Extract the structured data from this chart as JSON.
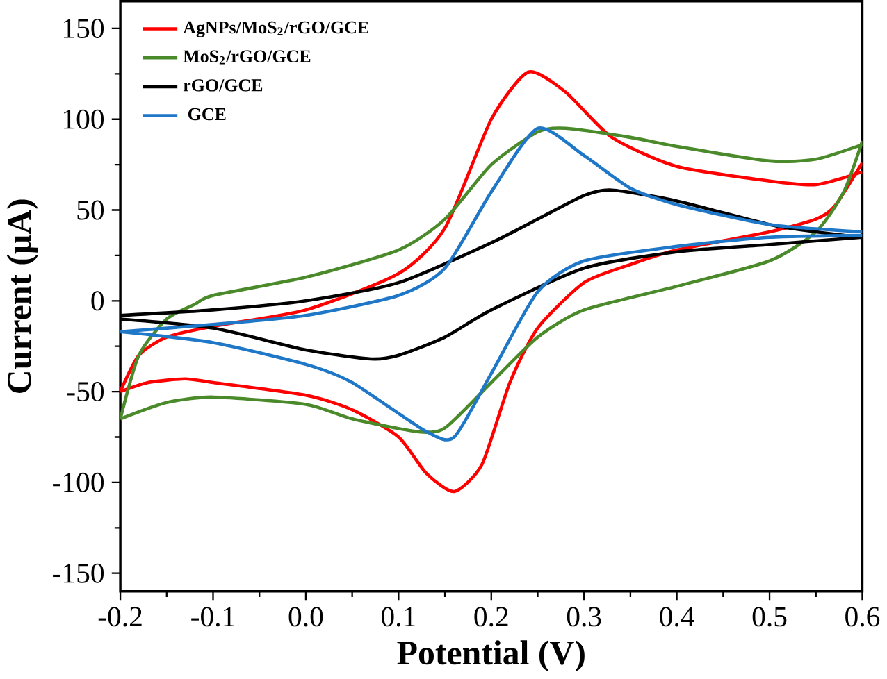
{
  "chart_data": {
    "type": "line",
    "xlabel": "Potential (V)",
    "ylabel": "Current (μA)",
    "xlim": [
      -0.2,
      0.6
    ],
    "ylim": [
      -160,
      165
    ],
    "xticks": [
      {
        "value": -0.2,
        "label": "-0.2"
      },
      {
        "value": -0.1,
        "label": "-0.1"
      },
      {
        "value": 0.0,
        "label": "0.0"
      },
      {
        "value": 0.1,
        "label": "0.1"
      },
      {
        "value": 0.2,
        "label": "0.2"
      },
      {
        "value": 0.3,
        "label": "0.3"
      },
      {
        "value": 0.4,
        "label": "0.4"
      },
      {
        "value": 0.5,
        "label": "0.5"
      },
      {
        "value": 0.6,
        "label": "0.6"
      }
    ],
    "yticks": [
      -150,
      -100,
      -50,
      0,
      50,
      100,
      150
    ],
    "legend": "top left",
    "grid": false,
    "line_style": "solid",
    "series": [
      {
        "name": "AgNPs/MoS$_{2}$/rGO/GCE",
        "color": "#ff0000",
        "x": [
          -0.2,
          -0.18,
          -0.15,
          -0.1,
          0.0,
          0.1,
          0.15,
          0.2,
          0.24,
          0.28,
          0.33,
          0.4,
          0.5,
          0.55,
          0.6
        ],
        "values": [
          -50,
          -30,
          -20,
          -14,
          -5,
          15,
          40,
          100,
          126,
          115,
          90,
          74,
          66,
          64,
          71
        ]
      },
      {
        "color": "#ff0000",
        "x": [
          -0.2,
          -0.17,
          -0.13,
          -0.1,
          0.0,
          0.05,
          0.1,
          0.13,
          0.16,
          0.19,
          0.22,
          0.25,
          0.3,
          0.35,
          0.4,
          0.5,
          0.55,
          0.57,
          0.6
        ],
        "values": [
          -50,
          -45,
          -43,
          -45,
          -52,
          -60,
          -75,
          -95,
          -105,
          -90,
          -45,
          -15,
          10,
          20,
          28,
          38,
          45,
          52,
          76
        ]
      },
      {
        "name": "MoS$_{2}$/rGO/GCE",
        "color": "#4a8a2a",
        "x": [
          -0.2,
          -0.18,
          -0.15,
          -0.12,
          -0.1,
          0.0,
          0.1,
          0.15,
          0.2,
          0.25,
          0.28,
          0.35,
          0.4,
          0.5,
          0.55,
          0.6
        ],
        "values": [
          -65,
          -30,
          -10,
          -2,
          3,
          13,
          28,
          45,
          75,
          93,
          95,
          90,
          85,
          77,
          78,
          86
        ]
      },
      {
        "color": "#4a8a2a",
        "x": [
          -0.2,
          -0.15,
          -0.1,
          0.0,
          0.05,
          0.12,
          0.15,
          0.2,
          0.25,
          0.3,
          0.4,
          0.5,
          0.55,
          0.58,
          0.6
        ],
        "values": [
          -65,
          -56,
          -53,
          -57,
          -65,
          -72,
          -70,
          -45,
          -20,
          -5,
          8,
          22,
          38,
          60,
          88
        ]
      },
      {
        "name": "rGO/GCE",
        "color": "#000000",
        "x": [
          -0.2,
          -0.1,
          0.0,
          0.1,
          0.2,
          0.25,
          0.3,
          0.33,
          0.4,
          0.5,
          0.55,
          0.6
        ],
        "values": [
          -8,
          -5,
          0,
          10,
          32,
          45,
          58,
          61,
          55,
          42,
          38,
          35
        ]
      },
      {
        "color": "#000000",
        "x": [
          -0.2,
          -0.1,
          0.0,
          0.07,
          0.1,
          0.15,
          0.2,
          0.3,
          0.4,
          0.5,
          0.6
        ],
        "values": [
          -10,
          -15,
          -27,
          -32,
          -30,
          -20,
          -5,
          18,
          27,
          31,
          35
        ]
      },
      {
        "name": "  GCE",
        "color": "#1f77c8",
        "x": [
          -0.2,
          -0.1,
          0.0,
          0.1,
          0.15,
          0.2,
          0.25,
          0.3,
          0.35,
          0.4,
          0.5,
          0.6
        ],
        "values": [
          -17,
          -13,
          -8,
          3,
          18,
          60,
          95,
          80,
          62,
          53,
          42,
          38
        ]
      },
      {
        "color": "#1f77c8",
        "x": [
          -0.2,
          -0.1,
          0.0,
          0.05,
          0.13,
          0.16,
          0.2,
          0.25,
          0.3,
          0.4,
          0.5,
          0.6
        ],
        "values": [
          -17,
          -23,
          -35,
          -45,
          -72,
          -75,
          -40,
          5,
          22,
          30,
          35,
          36
        ]
      }
    ]
  }
}
